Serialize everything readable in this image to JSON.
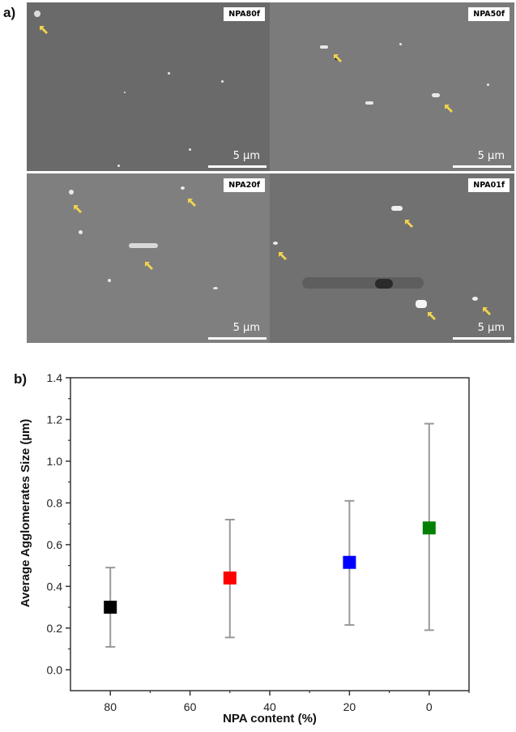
{
  "figure": {
    "panel_a_label": "a)",
    "panel_b_label": "b)",
    "micrographs": [
      {
        "label": "NPA80f",
        "scale": "5 µm",
        "bg": "#6a6a6a"
      },
      {
        "label": "NPA50f",
        "scale": "5 µm",
        "bg": "#7b7b7b"
      },
      {
        "label": "NPA20f",
        "scale": "5 µm",
        "bg": "#7f7f7f"
      },
      {
        "label": "NPA01f",
        "scale": "5 µm",
        "bg": "#717171"
      }
    ],
    "arrow_color": "#f2d350"
  },
  "chart_data": {
    "type": "scatter",
    "title": "",
    "xlabel": "NPA content (%)",
    "ylabel": "Average Agglomerates Size (µm)",
    "x_reversed": true,
    "xlim": [
      90,
      -10
    ],
    "ylim": [
      -0.1,
      1.4
    ],
    "x_ticks": [
      80,
      60,
      40,
      20,
      0
    ],
    "y_ticks": [
      "0.0",
      "0.2",
      "0.4",
      "0.6",
      "0.8",
      "1.0",
      "1.2",
      "1.4"
    ],
    "grid": false,
    "legend": null,
    "points": [
      {
        "x": 80,
        "y": 0.3,
        "err_low": 0.11,
        "err_high": 0.49,
        "color": "#000000"
      },
      {
        "x": 50,
        "y": 0.44,
        "err_low": 0.155,
        "err_high": 0.72,
        "color": "#ff0000"
      },
      {
        "x": 20,
        "y": 0.515,
        "err_low": 0.215,
        "err_high": 0.81,
        "color": "#0000ff"
      },
      {
        "x": 0,
        "y": 0.68,
        "err_low": 0.19,
        "err_high": 1.18,
        "color": "#008000"
      }
    ]
  }
}
